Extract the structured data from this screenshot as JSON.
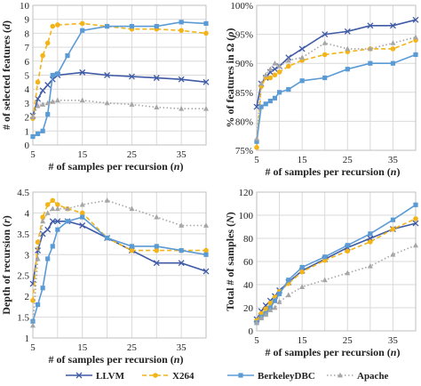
{
  "colors": {
    "LLVM": "#3f5aa6",
    "X264": "#f2b418",
    "BerkeleyDBC": "#5b9bd5",
    "Apache": "#a6a6a6",
    "grid": "#d9d9d9"
  },
  "legend": {
    "position": "bottom",
    "items": [
      {
        "name": "LLVM",
        "marker": "x",
        "dash": "solid"
      },
      {
        "name": "X264",
        "marker": "circle",
        "dash": "dash"
      },
      {
        "name": "BerkeleyDBC",
        "marker": "square",
        "dash": "solid"
      },
      {
        "name": "Apache",
        "marker": "triangle",
        "dash": "dot"
      }
    ]
  },
  "chart_data": [
    {
      "type": "line",
      "xlabel": "# of samples per recursion (n)",
      "ylabel": "# of selected features (d)",
      "xticks": [
        "5",
        "15",
        "25",
        "35"
      ],
      "yticks": [
        "0",
        "1",
        "2",
        "3",
        "4",
        "5",
        "6",
        "7",
        "8",
        "9",
        "10"
      ],
      "xlim": [
        5,
        40
      ],
      "ylim": [
        0,
        10
      ],
      "grid": true,
      "series": [
        {
          "name": "LLVM",
          "x": [
            5,
            6,
            7,
            8,
            9,
            10,
            15,
            20,
            25,
            30,
            35,
            40
          ],
          "y": [
            2.1,
            3.3,
            3.9,
            4.3,
            4.7,
            5.0,
            5.2,
            5.0,
            4.9,
            4.8,
            4.7,
            4.5
          ]
        },
        {
          "name": "X264",
          "x": [
            5,
            6,
            7,
            8,
            9,
            10,
            15,
            20,
            25,
            30,
            35,
            40
          ],
          "y": [
            1.9,
            4.5,
            6.4,
            7.3,
            8.5,
            8.6,
            8.7,
            8.5,
            8.3,
            8.3,
            8.2,
            8.0
          ]
        },
        {
          "name": "BerkeleyDBC",
          "x": [
            5,
            6,
            7,
            8,
            9,
            10,
            12,
            15,
            20,
            25,
            30,
            35,
            40
          ],
          "y": [
            0.6,
            0.8,
            1.0,
            2.2,
            5.0,
            5.1,
            6.4,
            8.2,
            8.5,
            8.5,
            8.5,
            8.8,
            8.7
          ]
        },
        {
          "name": "Apache",
          "x": [
            5,
            6,
            7,
            8,
            9,
            10,
            15,
            20,
            25,
            30,
            35,
            40
          ],
          "y": [
            2.0,
            2.8,
            2.9,
            3.0,
            3.1,
            3.2,
            3.2,
            3.0,
            2.9,
            2.7,
            2.6,
            2.6
          ]
        }
      ]
    },
    {
      "type": "line",
      "xlabel": "# of samples per recursion (n)",
      "ylabel": "% of features in Ω (ρ)",
      "xticks": [
        "5",
        "15",
        "25",
        "35"
      ],
      "yticks": [
        "75%",
        "80%",
        "85%",
        "90%",
        "95%",
        "100%"
      ],
      "xlim": [
        5,
        40
      ],
      "ylim": [
        75,
        100
      ],
      "grid": true,
      "series": [
        {
          "name": "LLVM",
          "x": [
            5,
            6,
            7,
            8,
            9,
            10,
            12,
            15,
            20,
            25,
            30,
            35,
            40
          ],
          "y": [
            82.5,
            86.5,
            87.5,
            88.5,
            89.0,
            89.5,
            91.0,
            92.5,
            95.0,
            95.5,
            96.5,
            96.5,
            97.5
          ]
        },
        {
          "name": "X264",
          "x": [
            5,
            6,
            7,
            8,
            9,
            10,
            12,
            15,
            20,
            25,
            30,
            35,
            40
          ],
          "y": [
            75.5,
            86.0,
            87.5,
            87.5,
            88.0,
            88.5,
            89.5,
            90.5,
            91.5,
            92.0,
            92.5,
            92.5,
            94.0
          ]
        },
        {
          "name": "BerkeleyDBC",
          "x": [
            5,
            6,
            7,
            8,
            9,
            10,
            12,
            15,
            20,
            25,
            30,
            35,
            40
          ],
          "y": [
            76.5,
            82.5,
            83.0,
            83.5,
            84.0,
            85.0,
            85.5,
            87.0,
            87.5,
            89.0,
            90.0,
            90.0,
            91.5
          ]
        },
        {
          "name": "Apache",
          "x": [
            5,
            6,
            7,
            8,
            9,
            10,
            12,
            15,
            20,
            25,
            30,
            35,
            40
          ],
          "y": [
            77.0,
            86.5,
            88.0,
            89.0,
            90.0,
            89.5,
            90.5,
            91.0,
            93.5,
            92.5,
            92.5,
            93.5,
            94.5
          ]
        }
      ]
    },
    {
      "type": "line",
      "xlabel": "# of samples per recursion (n)",
      "ylabel": "Depth of recursion (r)",
      "xticks": [
        "5",
        "15",
        "25",
        "35"
      ],
      "yticks": [
        "1",
        "1.5",
        "2",
        "2.5",
        "3",
        "3.5",
        "4",
        "4.5"
      ],
      "xlim": [
        5,
        40
      ],
      "ylim": [
        1,
        4.5
      ],
      "grid": true,
      "series": [
        {
          "name": "LLVM",
          "x": [
            5,
            6,
            7,
            8,
            9,
            10,
            12,
            15,
            20,
            25,
            30,
            35,
            40
          ],
          "y": [
            2.3,
            3.1,
            3.5,
            3.6,
            3.8,
            3.8,
            3.8,
            3.7,
            3.4,
            3.1,
            2.8,
            2.8,
            2.6
          ]
        },
        {
          "name": "X264",
          "x": [
            5,
            6,
            7,
            8,
            9,
            10,
            12,
            15,
            20,
            25,
            30,
            35,
            40
          ],
          "y": [
            1.9,
            3.3,
            3.9,
            4.2,
            4.3,
            4.2,
            4.1,
            4.0,
            3.4,
            3.1,
            3.1,
            3.1,
            3.1
          ]
        },
        {
          "name": "BerkeleyDBC",
          "x": [
            5,
            6,
            7,
            8,
            9,
            10,
            12,
            15,
            20,
            25,
            30,
            35,
            40
          ],
          "y": [
            1.4,
            1.8,
            2.2,
            2.9,
            3.2,
            3.6,
            3.8,
            3.9,
            3.4,
            3.2,
            3.2,
            3.1,
            3.0
          ]
        },
        {
          "name": "Apache",
          "x": [
            5,
            6,
            7,
            8,
            9,
            10,
            12,
            15,
            20,
            25,
            30,
            35,
            40
          ],
          "y": [
            1.3,
            2.9,
            3.8,
            4.0,
            4.1,
            4.1,
            4.1,
            4.2,
            4.3,
            4.1,
            3.9,
            3.7,
            3.7
          ]
        }
      ]
    },
    {
      "type": "line",
      "xlabel": "# of samples per recursion (n)",
      "ylabel": "Total # of samples (N)",
      "xticks": [
        "5",
        "15",
        "25",
        "35"
      ],
      "yticks": [
        "0",
        "20",
        "40",
        "60",
        "80",
        "100",
        "120"
      ],
      "xlim": [
        5,
        40
      ],
      "ylim": [
        0,
        120
      ],
      "grid": true,
      "series": [
        {
          "name": "LLVM",
          "x": [
            5,
            6,
            7,
            8,
            9,
            10,
            12,
            15,
            20,
            25,
            30,
            35,
            40
          ],
          "y": [
            10,
            17,
            22,
            26,
            30,
            35,
            42,
            52,
            62,
            72,
            80,
            88,
            93
          ]
        },
        {
          "name": "X264",
          "x": [
            5,
            6,
            7,
            8,
            9,
            10,
            12,
            15,
            20,
            25,
            30,
            35,
            40
          ],
          "y": [
            9,
            15,
            19,
            24,
            29,
            34,
            41,
            51,
            61,
            69,
            77,
            88,
            97
          ]
        },
        {
          "name": "BerkeleyDBC",
          "x": [
            5,
            6,
            7,
            8,
            9,
            10,
            12,
            15,
            20,
            25,
            30,
            35,
            40
          ],
          "y": [
            7,
            12,
            15,
            20,
            26,
            32,
            44,
            55,
            64,
            74,
            84,
            96,
            109
          ]
        },
        {
          "name": "Apache",
          "x": [
            5,
            6,
            7,
            8,
            9,
            10,
            12,
            15,
            20,
            25,
            30,
            35,
            40
          ],
          "y": [
            7,
            11,
            14,
            18,
            20,
            25,
            31,
            38,
            44,
            50,
            56,
            66,
            74
          ]
        }
      ]
    }
  ]
}
